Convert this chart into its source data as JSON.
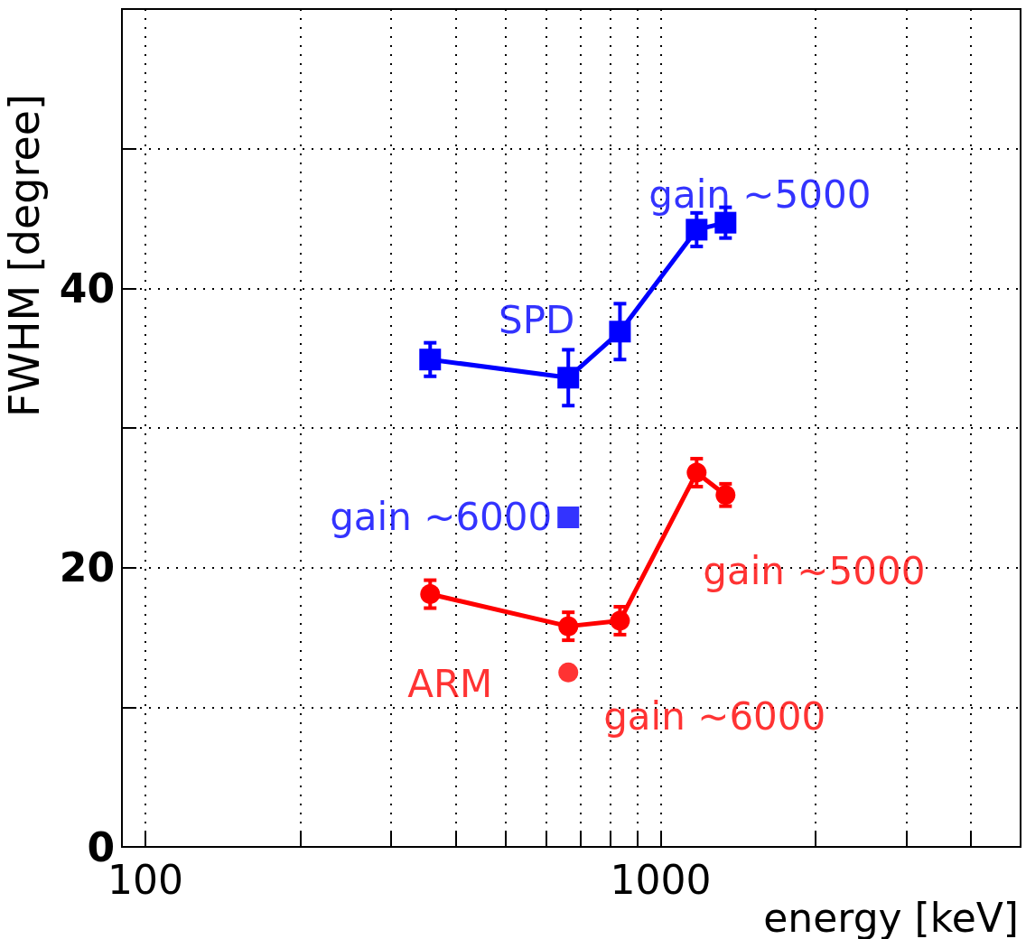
{
  "chart_data": {
    "type": "line",
    "xlabel": "energy [keV]",
    "ylabel": "FWHM [degree]",
    "log": "x",
    "grid": true,
    "line_style": "solid",
    "xlim": [
      90,
      5000
    ],
    "ylim": [
      0,
      60
    ],
    "xticks": [
      100,
      {
        "value": 200,
        "label": null
      },
      {
        "value": 300,
        "label": null
      },
      {
        "value": 400,
        "label": null
      },
      {
        "value": 500,
        "label": null
      },
      {
        "value": 600,
        "label": null
      },
      {
        "value": 700,
        "label": null
      },
      {
        "value": 800,
        "label": null
      },
      {
        "value": 900,
        "label": null
      },
      1000,
      {
        "value": 2000,
        "label": null
      },
      {
        "value": 3000,
        "label": null
      },
      {
        "value": 4000,
        "label": null
      }
    ],
    "yticks": [
      0,
      {
        "value": 10,
        "label": null
      },
      20,
      {
        "value": 30,
        "label": null
      },
      40,
      {
        "value": 50,
        "label": null
      }
    ],
    "series": [
      {
        "color": "#0000ff",
        "marker": "square",
        "x": [
          357,
          662,
          834,
          1175,
          1337
        ],
        "values": [
          34.9,
          33.6,
          36.9,
          44.2,
          44.7
        ],
        "errors": [
          1.2,
          2,
          2,
          1.2,
          1.1
        ]
      },
      {
        "type": "scatter",
        "color": "#0000ff",
        "marker": "square",
        "x": [
          662
        ],
        "values": [
          23.6
        ]
      },
      {
        "color": "#ff0000",
        "marker": "circle",
        "x": [
          357,
          662,
          834,
          1175,
          1337
        ],
        "values": [
          18.1,
          15.8,
          16.2,
          26.8,
          25.2
        ],
        "errors": [
          1,
          1,
          1,
          1,
          0.8
        ]
      },
      {
        "type": "scatter",
        "color": "#ff0000",
        "marker": "circle",
        "x": [
          662
        ],
        "values": [
          12.5
        ]
      }
    ],
    "annotations": [
      "gain ~5000",
      "SPD",
      "gain ~6000",
      "gain ~5000",
      "ARM",
      "gain ~6000"
    ]
  }
}
